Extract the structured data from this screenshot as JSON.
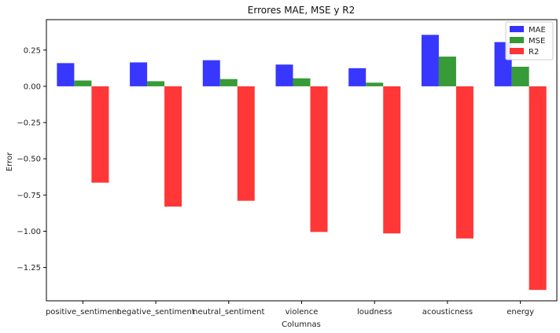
{
  "chart_data": {
    "type": "bar",
    "title": "Errores MAE, MSE y R2",
    "xlabel": "Columnas",
    "ylabel": "Error",
    "categories": [
      "positive_sentiment",
      "negative_sentiment",
      "neutral_sentiment",
      "violence",
      "loudness",
      "acousticness",
      "energy"
    ],
    "series": [
      {
        "name": "MAE",
        "color": "#3333ff",
        "values": [
          0.16,
          0.165,
          0.18,
          0.15,
          0.125,
          0.355,
          0.305
        ]
      },
      {
        "name": "MSE",
        "color": "#339933",
        "values": [
          0.04,
          0.035,
          0.05,
          0.055,
          0.025,
          0.205,
          0.135
        ]
      },
      {
        "name": "R2",
        "color": "#ff3333",
        "values": [
          -0.665,
          -0.83,
          -0.79,
          -1.005,
          -1.015,
          -1.05,
          -1.405
        ]
      }
    ],
    "yticks": [
      "0.25",
      "0.00",
      "−0.25",
      "−0.50",
      "−0.75",
      "−1.00",
      "−1.25"
    ],
    "ytick_values": [
      0.25,
      0.0,
      -0.25,
      -0.5,
      -0.75,
      -1.0,
      -1.25
    ],
    "ylim": [
      -1.48,
      0.46
    ],
    "grid": false,
    "legend_position": "top-right"
  }
}
